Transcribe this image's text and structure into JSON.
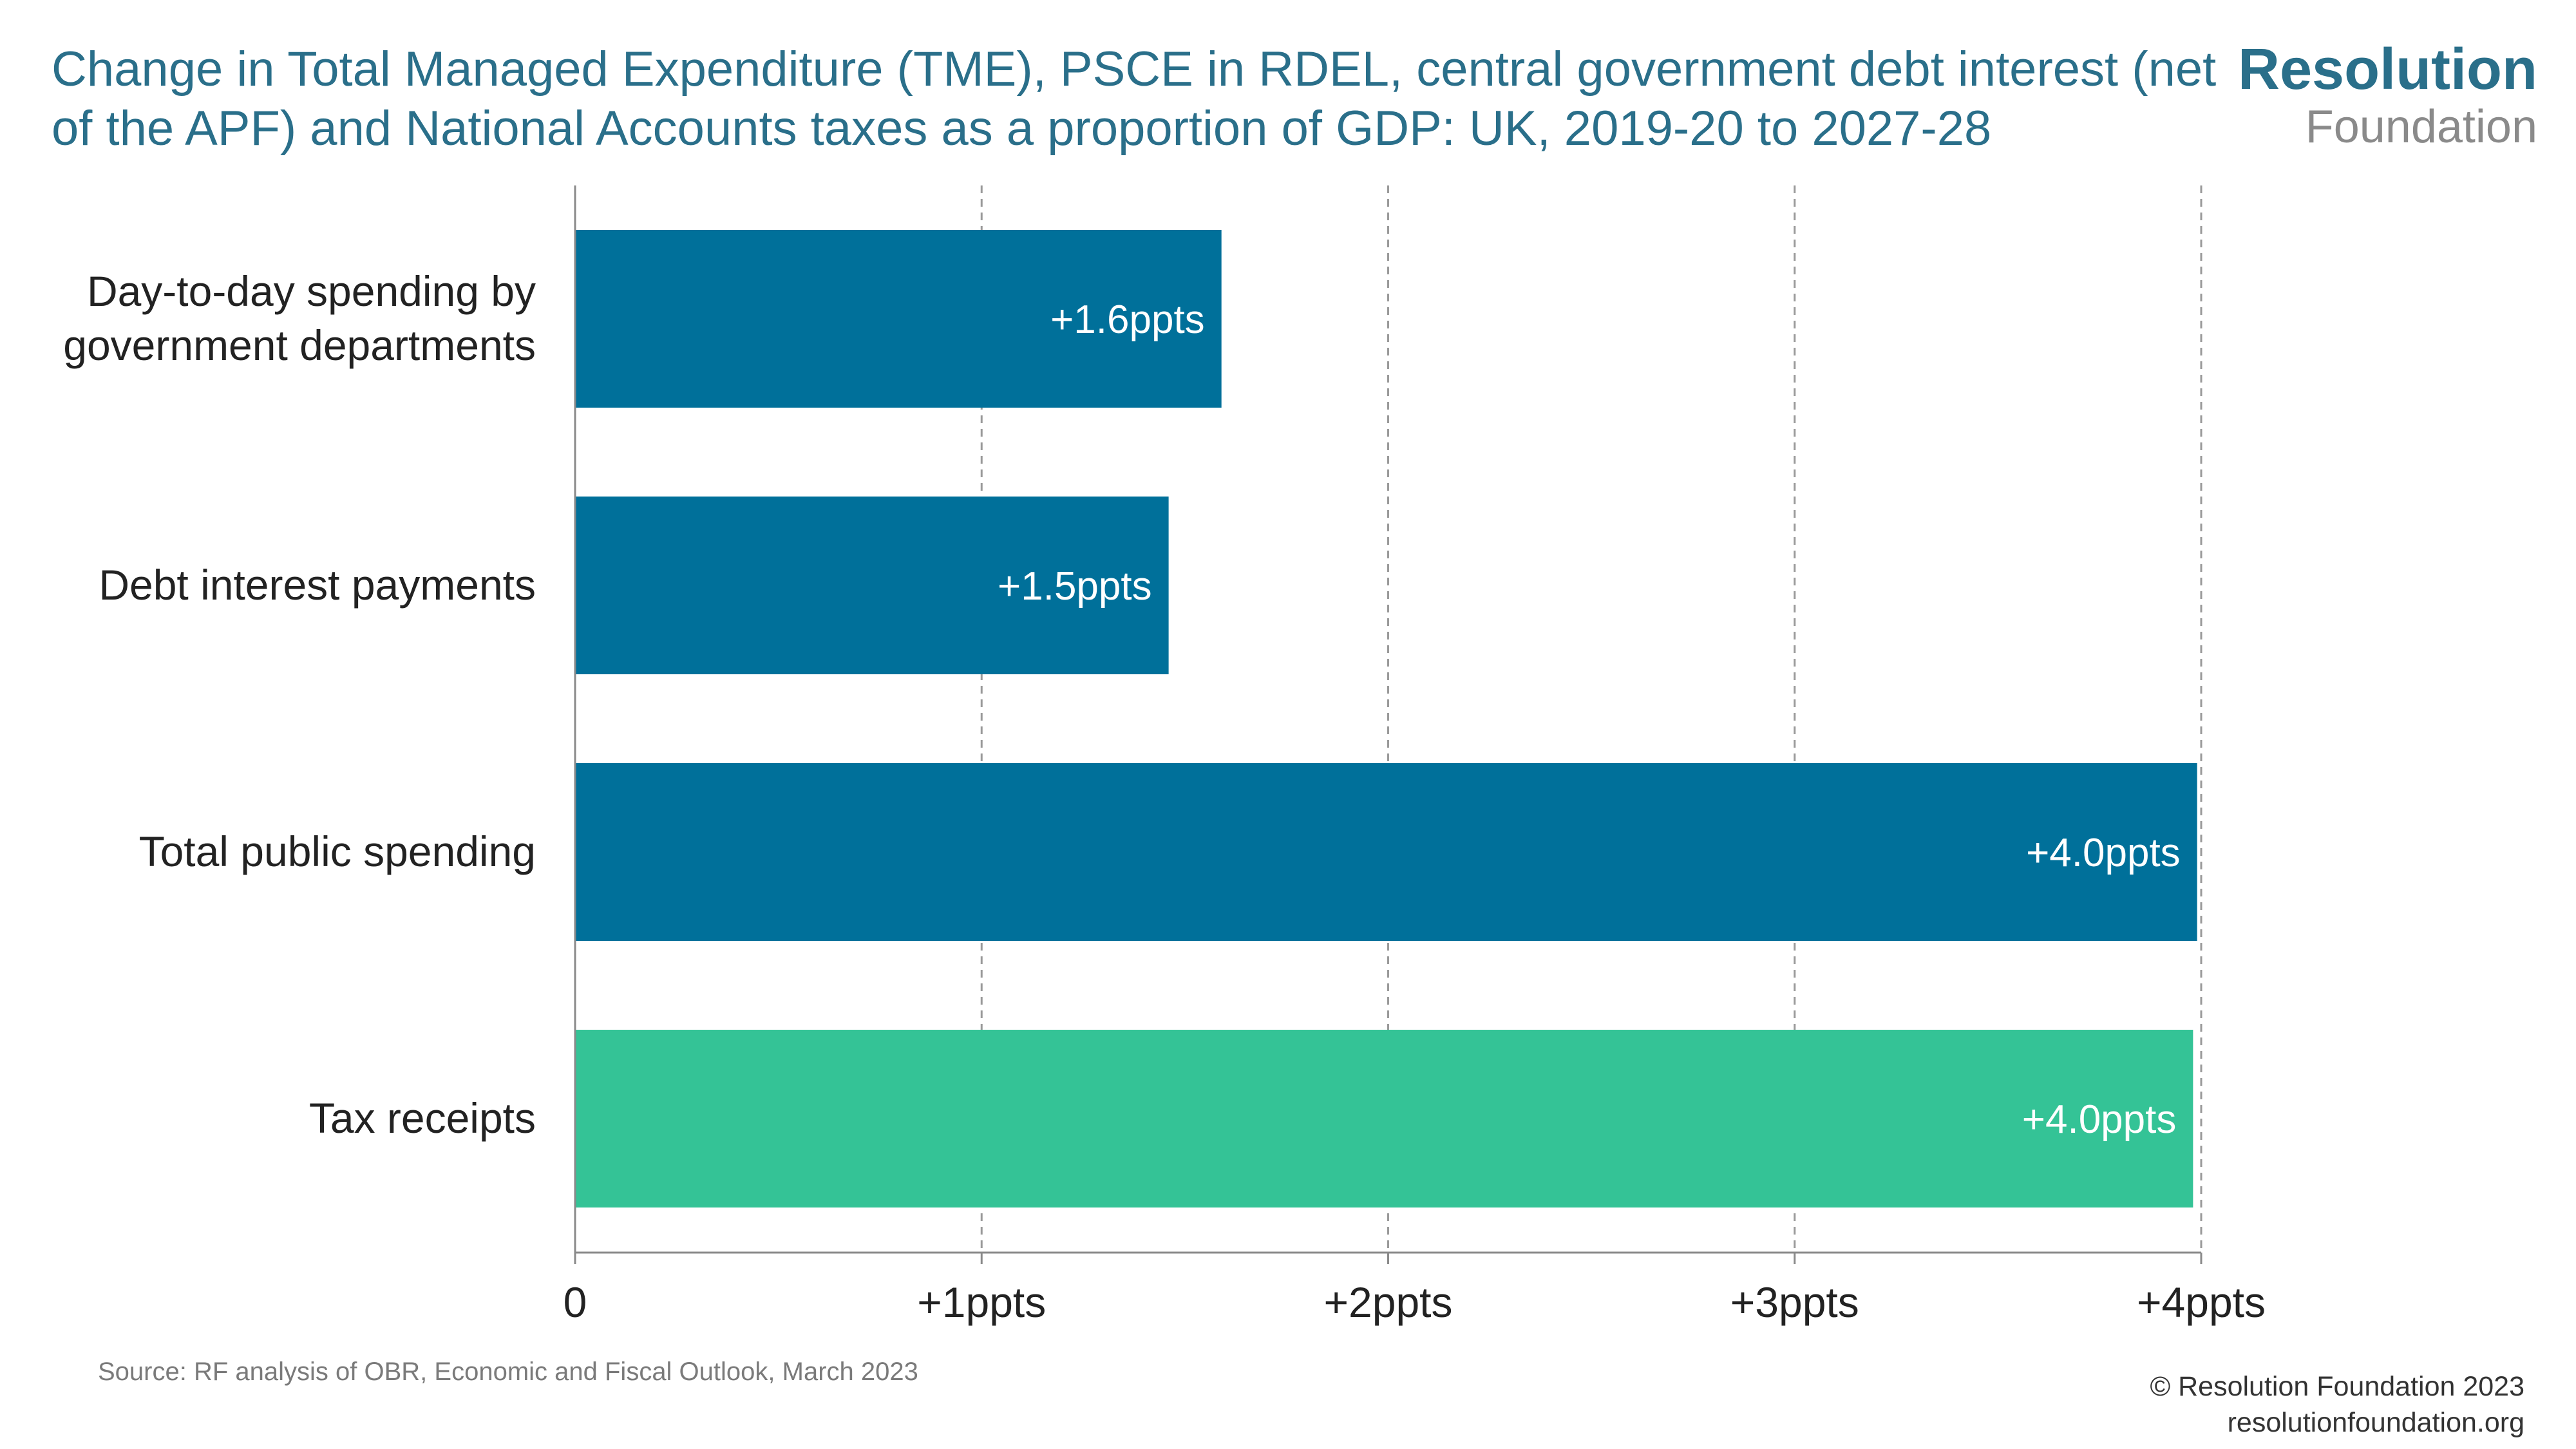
{
  "title": "Change in Total Managed Expenditure (TME), PSCE in RDEL, central government debt interest (net of the APF) and National Accounts taxes as a proportion of GDP: UK, 2019-20 to 2027-28",
  "logo": {
    "line1": "Resolution",
    "line2": "Foundation",
    "accent_color": "#f2c200"
  },
  "source": "Source: RF analysis of OBR, Economic and Fiscal Outlook, March 2023",
  "footer": {
    "copyright": "© Resolution Foundation 2023",
    "website": "resolutionfoundation.org"
  },
  "chart_data": {
    "type": "bar",
    "orientation": "horizontal",
    "categories": [
      [
        "Day-to-day spending by",
        "government departments"
      ],
      [
        "Debt interest payments"
      ],
      [
        "Total public spending"
      ],
      [
        "Tax receipts"
      ]
    ],
    "values": [
      1.59,
      1.46,
      3.99,
      3.98
    ],
    "data_labels": [
      "+1.6ppts",
      "+1.5ppts",
      "+4.0ppts",
      "+4.0ppts"
    ],
    "colors": [
      "#00709a",
      "#00709a",
      "#00709a",
      "#34c396"
    ],
    "xlim": [
      0,
      4
    ],
    "xticks": [
      0,
      1,
      2,
      3,
      4
    ],
    "xtick_labels": [
      "0",
      "+1ppts",
      "+2ppts",
      "+3ppts",
      "+4ppts"
    ],
    "grid": "vertical dashed",
    "legend": "none"
  }
}
